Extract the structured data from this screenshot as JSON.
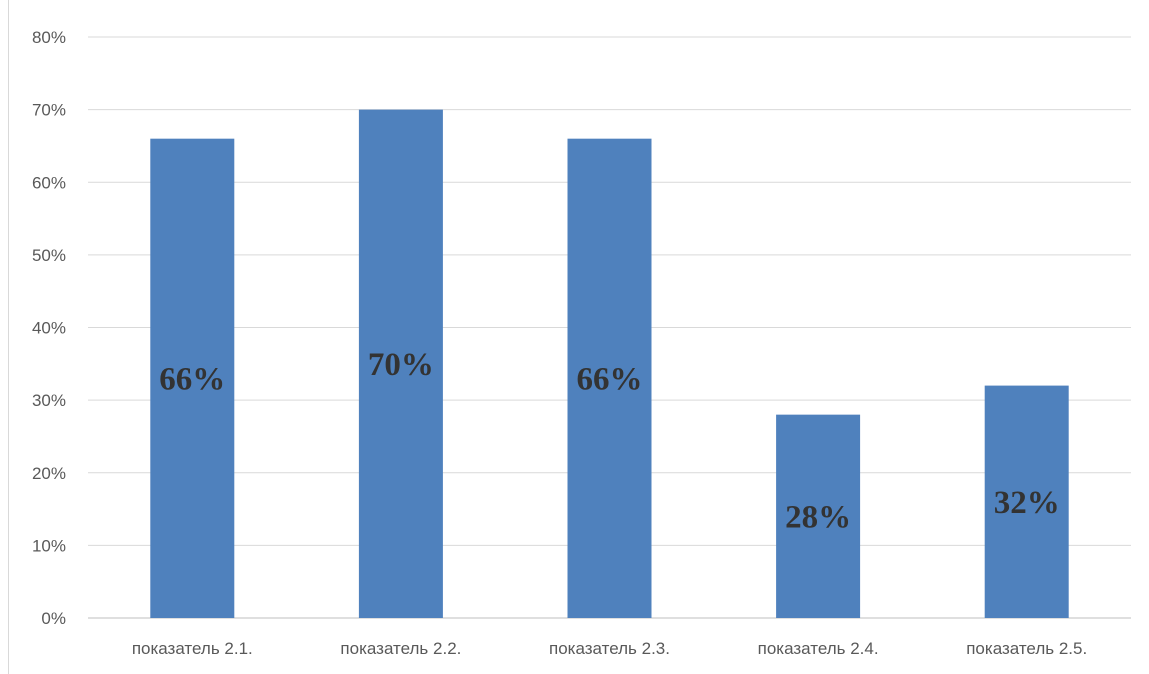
{
  "chart_data": {
    "type": "bar",
    "categories": [
      "показатель 2.1.",
      "показатель 2.2.",
      "показатель 2.3.",
      "показатель 2.4.",
      "показатель 2.5."
    ],
    "values": [
      66,
      70,
      66,
      28,
      32
    ],
    "data_labels": [
      "66%",
      "70%",
      "66%",
      "28%",
      "32%"
    ],
    "y_ticks": [
      "0%",
      "10%",
      "20%",
      "30%",
      "40%",
      "50%",
      "60%",
      "70%",
      "80%"
    ],
    "ylim": [
      0,
      80
    ],
    "y_unit": "%",
    "title": "",
    "xlabel": "",
    "ylabel": "",
    "grid": true,
    "legend": "none",
    "colors": {
      "bar": "#4f81bd",
      "grid": "#d9d9d9",
      "tick_text": "#595959",
      "label_text": "#333333"
    }
  }
}
